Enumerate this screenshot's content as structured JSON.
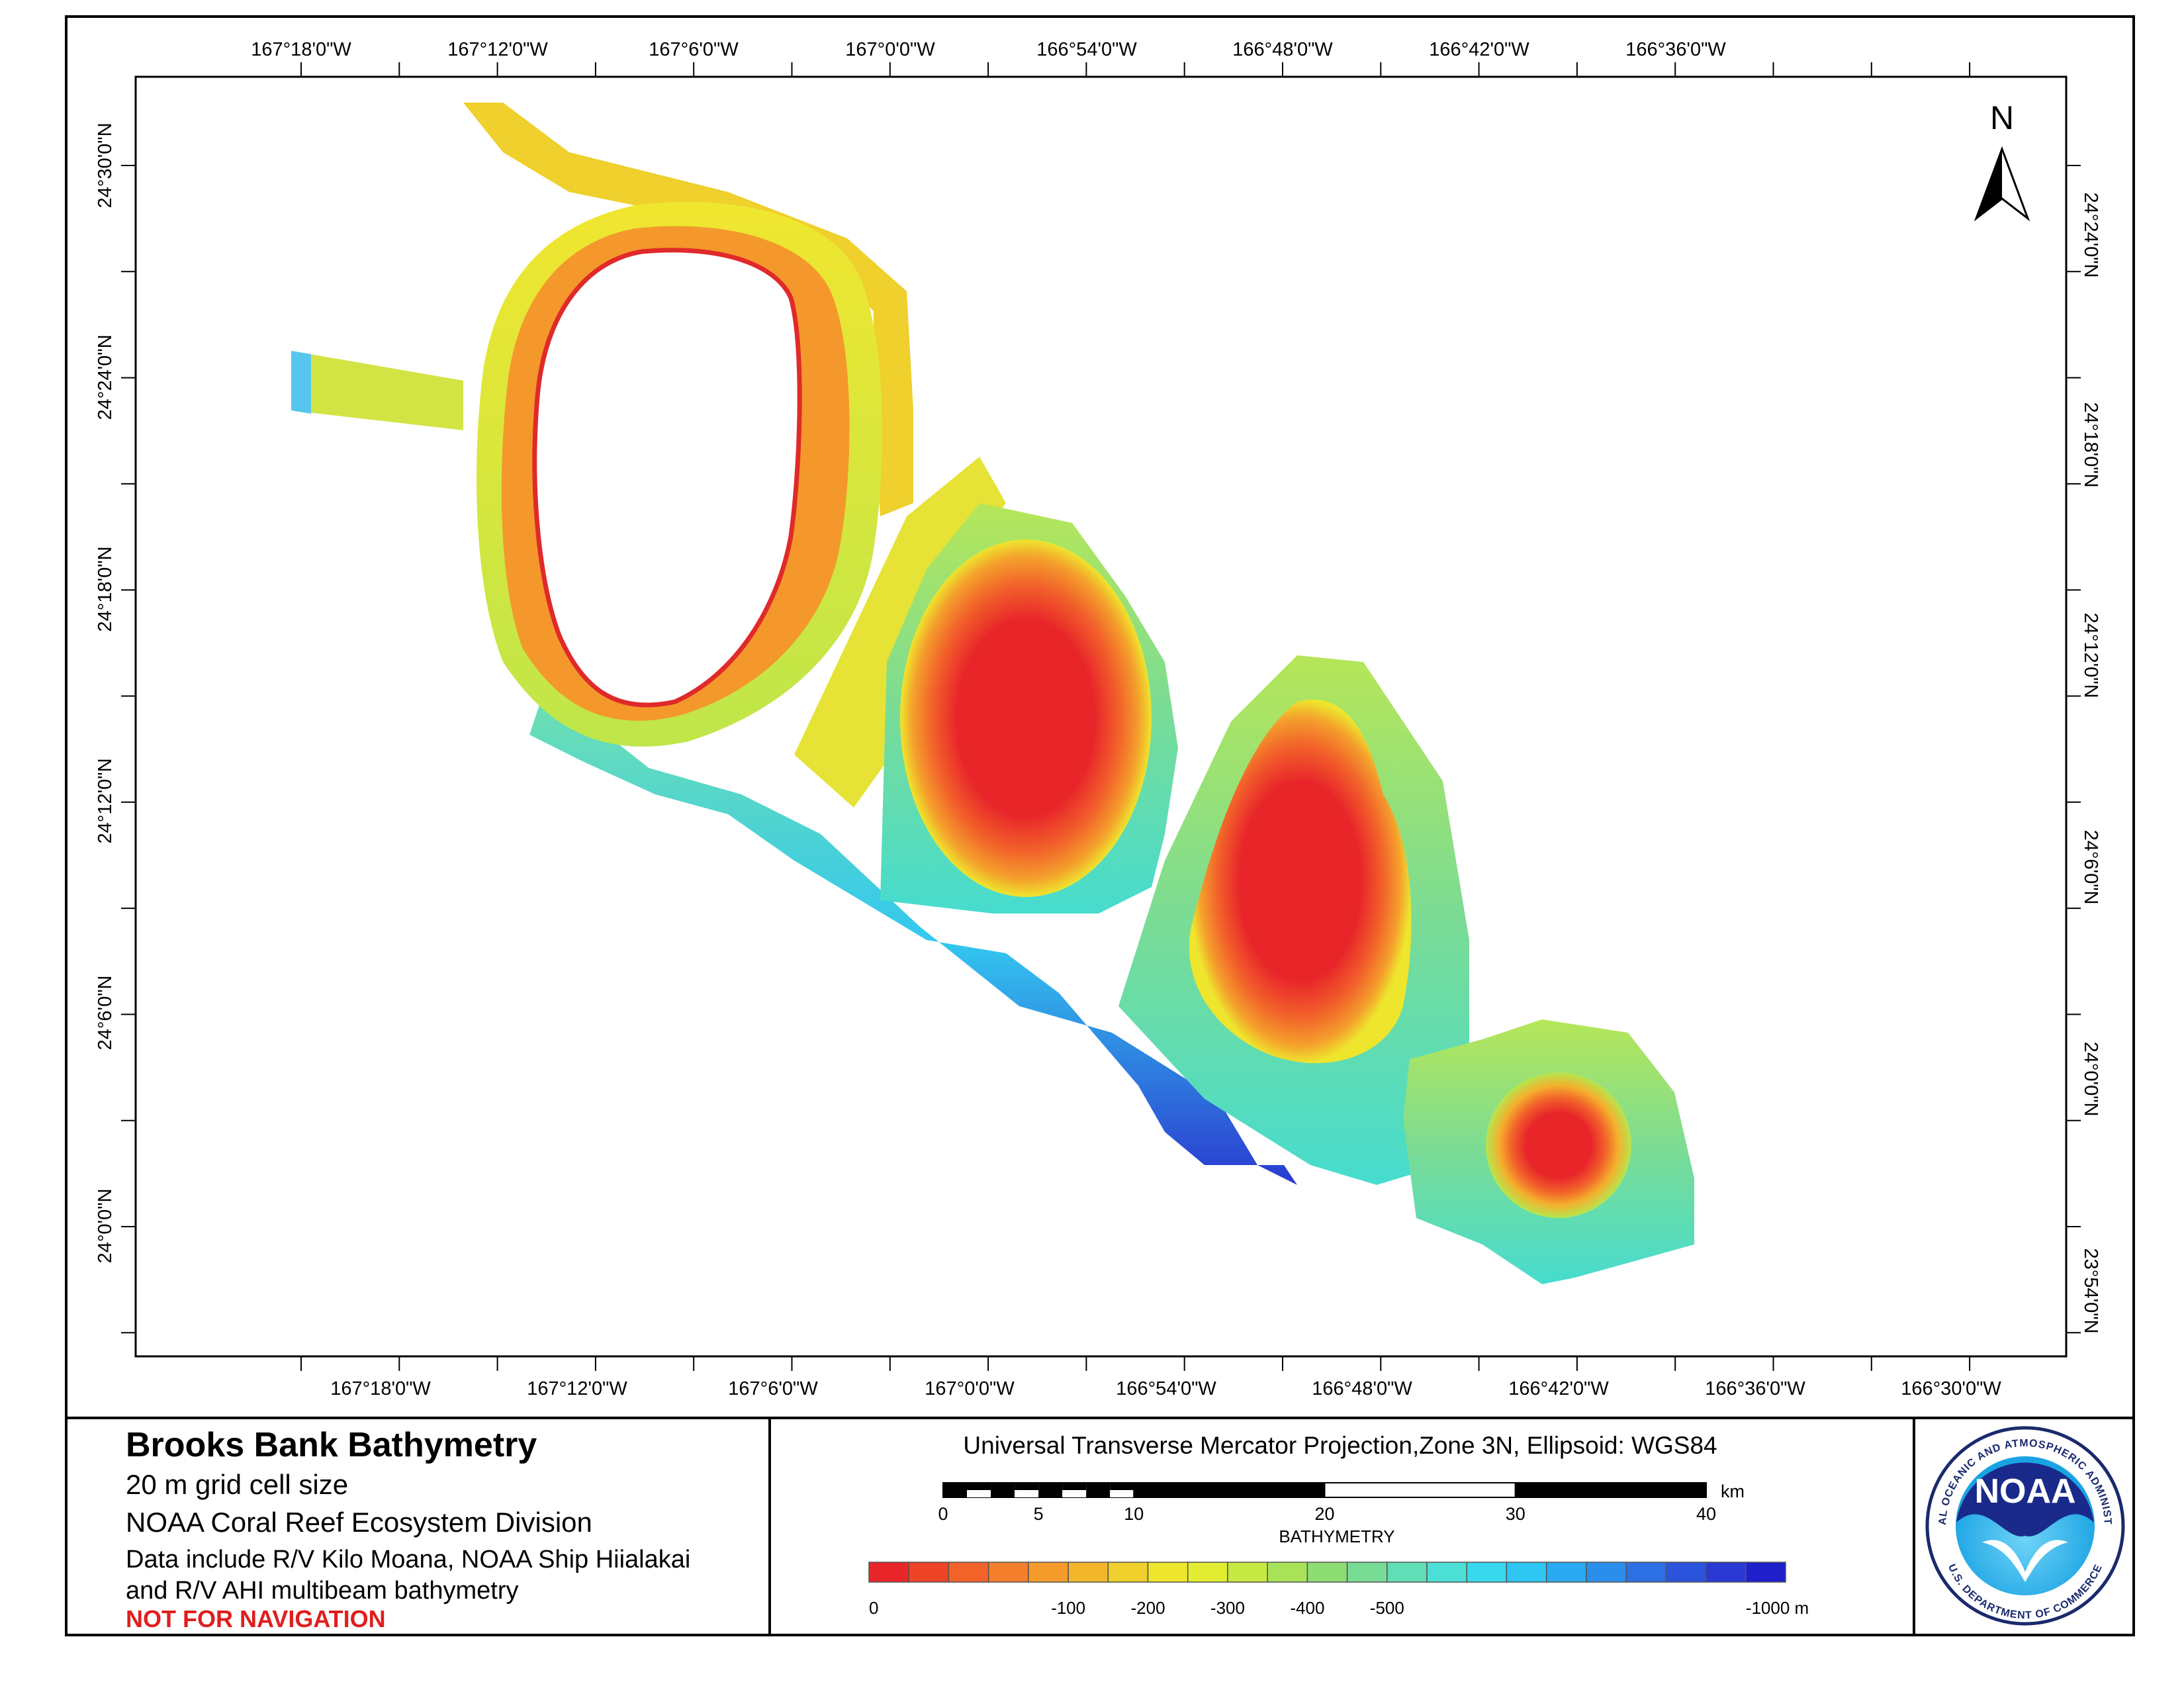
{
  "map": {
    "top_lon_labels": [
      "167°18'0\"W",
      "167°12'0\"W",
      "167°6'0\"W",
      "167°0'0\"W",
      "166°54'0\"W",
      "166°48'0\"W",
      "166°42'0\"W",
      "166°36'0\"W"
    ],
    "bottom_lon_labels": [
      "167°18'0\"W",
      "167°12'0\"W",
      "167°6'0\"W",
      "167°0'0\"W",
      "166°54'0\"W",
      "166°48'0\"W",
      "166°42'0\"W",
      "166°36'0\"W",
      "166°30'0\"W"
    ],
    "left_lat_labels": [
      "24°30'0\"N",
      "24°24'0\"N",
      "24°18'0\"N",
      "24°12'0\"N",
      "24°6'0\"N",
      "24°0'0\"N"
    ],
    "right_lat_labels": [
      "24°24'0\"N",
      "24°18'0\"N",
      "24°12'0\"N",
      "24°6'0\"N",
      "24°0'0\"N",
      "23°54'0\"N"
    ],
    "north_label": "N"
  },
  "info": {
    "title": "Brooks Bank Bathymetry",
    "grid": "20 m grid cell size",
    "org": "NOAA Coral Reef Ecosystem Division",
    "data_line1": "Data include R/V Kilo Moana, NOAA Ship Hiialakai",
    "data_line2": "and R/V AHI multibeam bathymetry",
    "warning": "NOT FOR NAVIGATION"
  },
  "projection": "Universal Transverse Mercator Projection,Zone 3N, Ellipsoid: WGS84",
  "scale_bar": {
    "labels": [
      "0",
      "5",
      "10",
      "20",
      "30",
      "40"
    ],
    "values_km": [
      0,
      5,
      10,
      20,
      30,
      40
    ],
    "unit": "km"
  },
  "legend": {
    "title": "BATHYMETRY",
    "labels": [
      "0",
      "-100",
      "-200",
      "-300",
      "-400",
      "-500",
      "-1000 m"
    ],
    "colors": [
      "#e8262a",
      "#ed4426",
      "#f2632a",
      "#f37e2b",
      "#f49b2c",
      "#f2b62c",
      "#efd02c",
      "#eee52d",
      "#e2ec31",
      "#c7e841",
      "#a8e259",
      "#8ddd73",
      "#78dc95",
      "#62deb6",
      "#4cdfd6",
      "#38d8ef",
      "#2ec6f3",
      "#2aaaf0",
      "#2b8eea",
      "#2c70e3",
      "#2b53db",
      "#2a38d4",
      "#1f1fcc"
    ],
    "tick_positions": [
      0,
      5,
      7,
      9,
      11,
      13,
      22
    ]
  },
  "logo": {
    "center": "NOAA",
    "ring_text": "NATIONAL OCEANIC AND ATMOSPHERIC ADMINISTRATION",
    "ring_bottom": "U.S. DEPARTMENT OF COMMERCE"
  }
}
